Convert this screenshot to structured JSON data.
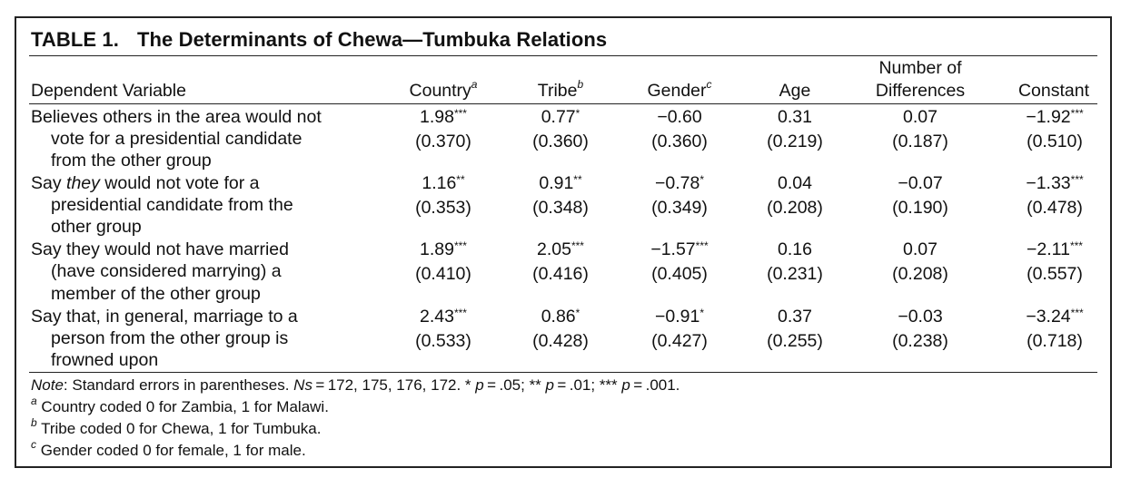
{
  "table": {
    "label": "TABLE 1.",
    "title": "The Determinants of Chewa—Tumbuka Relations",
    "columns": {
      "dependent": "Dependent Variable",
      "country": "Country",
      "country_mark": "a",
      "tribe": "Tribe",
      "tribe_mark": "b",
      "gender": "Gender",
      "gender_mark": "c",
      "age": "Age",
      "differences_line1": "Number of",
      "differences_line2": "Differences",
      "constant": "Constant"
    },
    "rows": [
      {
        "label_lines": [
          "Believes others in the area would not",
          "vote for a presidential candidate",
          "from the other group"
        ],
        "coefs": [
          {
            "value": "1.98",
            "stars": "***",
            "se": "(0.370)"
          },
          {
            "value": "0.77",
            "stars": "*",
            "se": "(0.360)"
          },
          {
            "value": "−0.60",
            "stars": "",
            "se": "(0.360)"
          },
          {
            "value": "0.31",
            "stars": "",
            "se": "(0.219)"
          },
          {
            "value": "0.07",
            "stars": "",
            "se": "(0.187)"
          },
          {
            "value": "−1.92",
            "stars": "***",
            "se": "(0.510)"
          }
        ]
      },
      {
        "label_prefix": "Say ",
        "label_emph": "they",
        "label_suffix": " would not vote for a",
        "label_lines": [
          "presidential candidate from the",
          "other group"
        ],
        "coefs": [
          {
            "value": "1.16",
            "stars": "**",
            "se": "(0.353)"
          },
          {
            "value": "0.91",
            "stars": "**",
            "se": "(0.348)"
          },
          {
            "value": "−0.78",
            "stars": "*",
            "se": "(0.349)"
          },
          {
            "value": "0.04",
            "stars": "",
            "se": "(0.208)"
          },
          {
            "value": "−0.07",
            "stars": "",
            "se": "(0.190)"
          },
          {
            "value": "−1.33",
            "stars": "***",
            "se": "(0.478)"
          }
        ]
      },
      {
        "label_lines": [
          "Say they would not have married",
          "(have considered marrying) a",
          "member of the other group"
        ],
        "coefs": [
          {
            "value": "1.89",
            "stars": "***",
            "se": "(0.410)"
          },
          {
            "value": "2.05",
            "stars": "***",
            "se": "(0.416)"
          },
          {
            "value": "−1.57",
            "stars": "***",
            "se": "(0.405)"
          },
          {
            "value": "0.16",
            "stars": "",
            "se": "(0.231)"
          },
          {
            "value": "0.07",
            "stars": "",
            "se": "(0.208)"
          },
          {
            "value": "−2.11",
            "stars": "***",
            "se": "(0.557)"
          }
        ]
      },
      {
        "label_lines": [
          "Say that, in general, marriage to a",
          "person from the other group is",
          "frowned upon"
        ],
        "coefs": [
          {
            "value": "2.43",
            "stars": "***",
            "se": "(0.533)"
          },
          {
            "value": "0.86",
            "stars": "*",
            "se": "(0.428)"
          },
          {
            "value": "−0.91",
            "stars": "*",
            "se": "(0.427)"
          },
          {
            "value": "0.37",
            "stars": "",
            "se": "(0.255)"
          },
          {
            "value": "−0.03",
            "stars": "",
            "se": "(0.238)"
          },
          {
            "value": "−3.24",
            "stars": "***",
            "se": "(0.718)"
          }
        ]
      }
    ],
    "note": {
      "note_label": "Note",
      "note_text_1": ": Standard errors in parentheses. ",
      "note_ns": "Ns",
      "note_text_2": " = 172, 175, 176, 172. * ",
      "p1": "p",
      "p1_val": " = .05; ** ",
      "p2": "p",
      "p2_val": " = .01; *** ",
      "p3": "p",
      "p3_val": " = .001.",
      "footnotes": [
        {
          "mark": "a",
          "text": " Country coded 0 for Zambia, 1 for Malawi."
        },
        {
          "mark": "b",
          "text": " Tribe coded 0 for Chewa, 1 for Tumbuka."
        },
        {
          "mark": "c",
          "text": " Gender coded 0 for female, 1 for male."
        }
      ]
    }
  }
}
